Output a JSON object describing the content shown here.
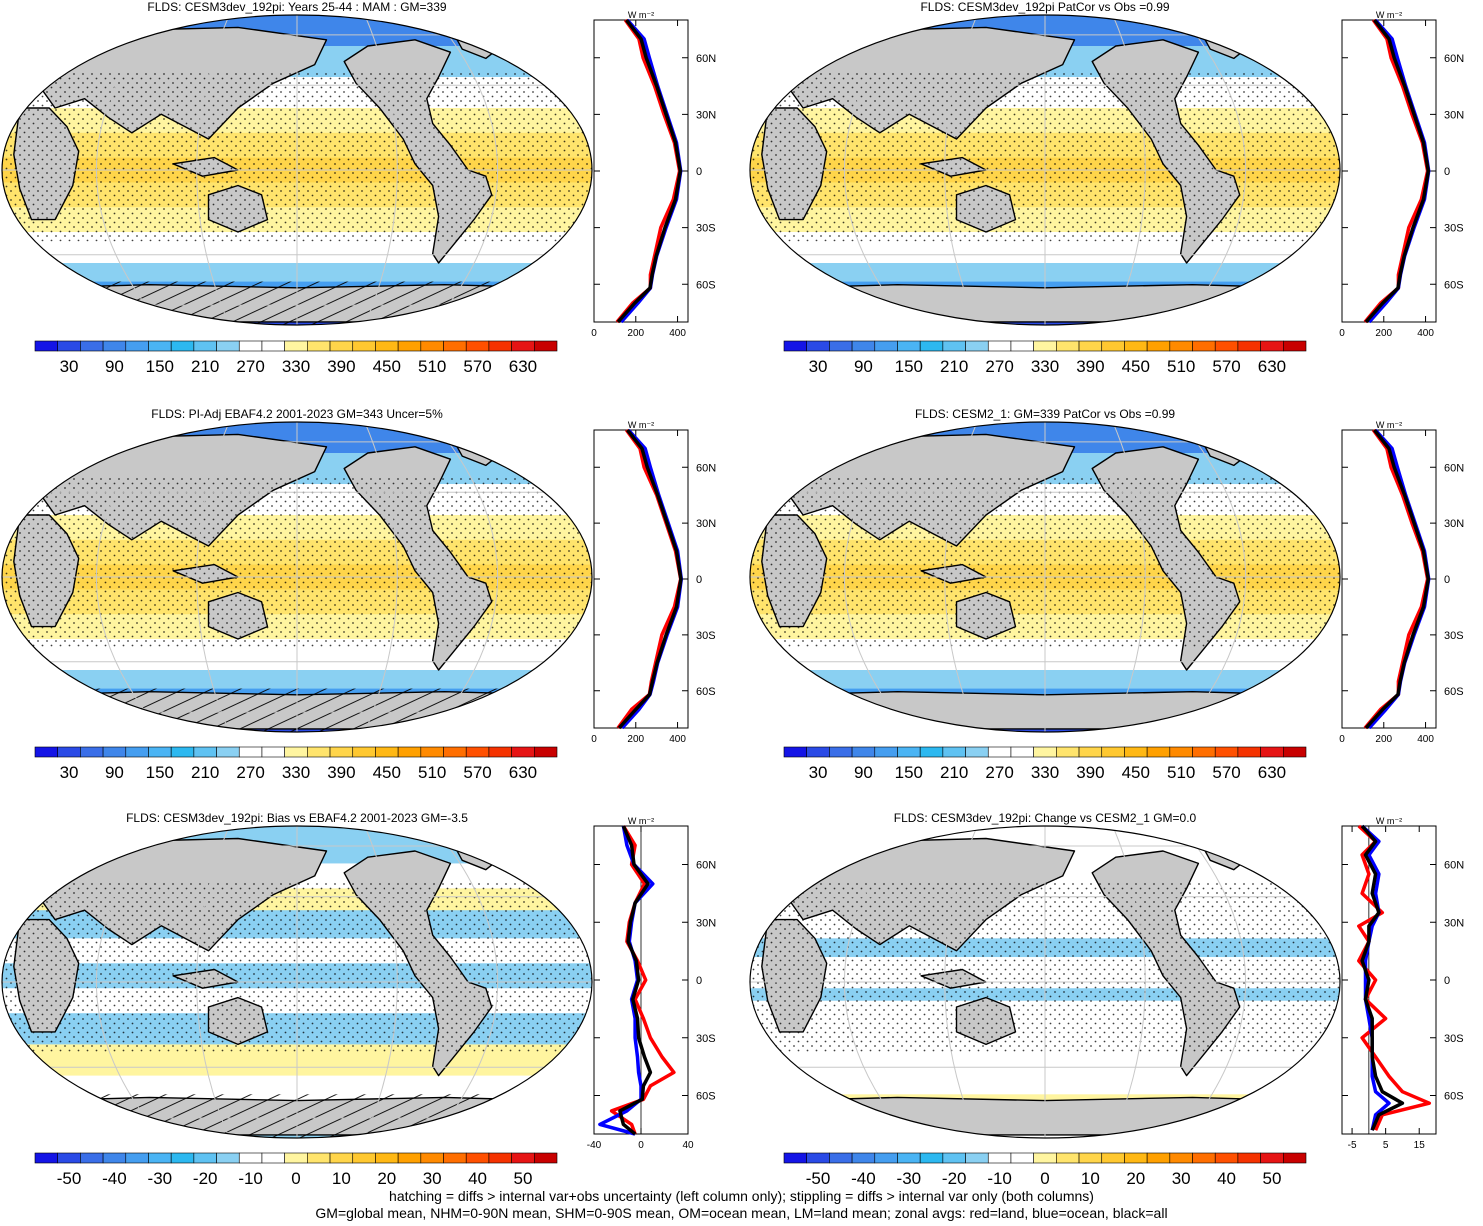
{
  "footer": {
    "line1": "hatching = diffs > internal var+obs uncertainty (left column only); stippling = diffs > internal var only (both columns)",
    "line2": "GM=global mean, NHM=0-90N mean, SHM=0-90S mean, OM=ocean mean, LM=land mean; zonal avgs: red=land, blue=ocean, black=all"
  },
  "units_label": "W m⁻²",
  "lat_ticks": [
    "60N",
    "30N",
    "0",
    "30S",
    "60S"
  ],
  "colors": {
    "land": "#c8c8c8",
    "zonal_land": "#ff0000",
    "zonal_ocean": "#0000ff",
    "zonal_all": "#000000"
  },
  "colorbars": {
    "absolute": {
      "labels": [
        "30",
        "90",
        "150",
        "210",
        "270",
        "330",
        "390",
        "450",
        "510",
        "570",
        "630"
      ],
      "colors": [
        "#1414e6",
        "#2a4ae6",
        "#3a6ee8",
        "#3f86ea",
        "#459ef0",
        "#4ab4f4",
        "#2cb8f0",
        "#5fc2f2",
        "#8ad0f2",
        "#ffffff",
        "#ffffff",
        "#fff5a0",
        "#ffe46c",
        "#ffd54a",
        "#ffc830",
        "#ffb814",
        "#ffa000",
        "#ff8a00",
        "#ff6e00",
        "#ff5000",
        "#f53200",
        "#e61414",
        "#c80000"
      ]
    },
    "difference": {
      "labels": [
        "-50",
        "-40",
        "-30",
        "-20",
        "-10",
        "0",
        "10",
        "20",
        "30",
        "40",
        "50"
      ],
      "colors": [
        "#1414e6",
        "#2a4ae6",
        "#3a6ee8",
        "#3f86ea",
        "#459ef0",
        "#4ab4f4",
        "#2cb8f0",
        "#5fc2f2",
        "#8ad0f2",
        "#ffffff",
        "#ffffff",
        "#fff5a0",
        "#ffe46c",
        "#ffd54a",
        "#ffc830",
        "#ffb814",
        "#ffa000",
        "#ff8a00",
        "#ff6e00",
        "#ff5000",
        "#f53200",
        "#e61414",
        "#c80000"
      ]
    }
  },
  "chart_data": [
    {
      "type": "heatmap",
      "title": "FLDS: CESM3dev_192pi: Years 25-44 : MAM : GM=339",
      "field": "absolute",
      "stipple": true,
      "hatch": true,
      "zonal_xlim": [
        0,
        450
      ],
      "zonal_xticks": [
        "0",
        "200",
        "400"
      ],
      "zonal_lat": [
        80,
        70,
        60,
        45,
        30,
        15,
        0,
        -15,
        -30,
        -45,
        -55,
        -62,
        -70,
        -80
      ],
      "zonal_land": [
        150,
        215,
        235,
        290,
        335,
        385,
        410,
        380,
        320,
        290,
        270,
        270,
        185,
        110
      ],
      "zonal_ocean": [
        160,
        240,
        265,
        305,
        350,
        395,
        415,
        395,
        345,
        300,
        280,
        270,
        210,
        130
      ],
      "zonal_all": [
        155,
        225,
        250,
        300,
        345,
        390,
        413,
        390,
        340,
        298,
        278,
        268,
        195,
        115
      ]
    },
    {
      "type": "heatmap",
      "title": "FLDS: CESM3dev_192pi PatCor vs Obs =0.99",
      "field": "absolute",
      "stipple": true,
      "hatch": false,
      "zonal_xlim": [
        0,
        450
      ],
      "zonal_xticks": [
        "0",
        "200",
        "400"
      ],
      "zonal_lat": [
        80,
        70,
        60,
        45,
        30,
        15,
        0,
        -15,
        -30,
        -45,
        -55,
        -62,
        -70,
        -80
      ],
      "zonal_land": [
        150,
        215,
        235,
        290,
        335,
        385,
        410,
        380,
        320,
        290,
        270,
        270,
        185,
        110
      ],
      "zonal_ocean": [
        160,
        240,
        265,
        305,
        350,
        395,
        415,
        395,
        345,
        300,
        280,
        270,
        210,
        130
      ],
      "zonal_all": [
        155,
        225,
        250,
        300,
        345,
        390,
        413,
        390,
        340,
        298,
        278,
        268,
        195,
        115
      ]
    },
    {
      "type": "heatmap",
      "title": "FLDS: PI-Adj EBAF4.2 2001-2023 GM=343 Uncer=5%",
      "field": "absolute",
      "stipple": true,
      "hatch": true,
      "zonal_xlim": [
        0,
        450
      ],
      "zonal_xticks": [
        "0",
        "200",
        "400"
      ],
      "zonal_lat": [
        80,
        70,
        60,
        45,
        30,
        15,
        0,
        -15,
        -30,
        -45,
        -55,
        -62,
        -70,
        -80
      ],
      "zonal_land": [
        155,
        220,
        240,
        300,
        345,
        390,
        415,
        385,
        325,
        295,
        275,
        265,
        180,
        115
      ],
      "zonal_ocean": [
        165,
        245,
        270,
        310,
        355,
        400,
        418,
        400,
        350,
        305,
        285,
        268,
        215,
        135
      ],
      "zonal_all": [
        160,
        230,
        255,
        305,
        350,
        395,
        416,
        395,
        345,
        302,
        280,
        266,
        200,
        120
      ]
    },
    {
      "type": "heatmap",
      "title": "FLDS: CESM2_1: GM=339 PatCor vs Obs =0.99",
      "field": "absolute",
      "stipple": true,
      "hatch": false,
      "zonal_xlim": [
        0,
        450
      ],
      "zonal_xticks": [
        "0",
        "200",
        "400"
      ],
      "zonal_lat": [
        80,
        70,
        60,
        45,
        30,
        15,
        0,
        -15,
        -30,
        -45,
        -55,
        -62,
        -70,
        -80
      ],
      "zonal_land": [
        150,
        215,
        235,
        290,
        335,
        385,
        410,
        380,
        320,
        290,
        270,
        270,
        185,
        110
      ],
      "zonal_ocean": [
        160,
        240,
        265,
        305,
        350,
        395,
        415,
        395,
        345,
        300,
        280,
        270,
        210,
        130
      ],
      "zonal_all": [
        155,
        225,
        250,
        300,
        345,
        390,
        413,
        390,
        340,
        298,
        278,
        268,
        195,
        115
      ]
    },
    {
      "type": "heatmap",
      "title": "FLDS: CESM3dev_192pi: Bias vs EBAF4.2 2001-2023 GM=-3.5",
      "field": "difference",
      "stipple": true,
      "hatch": true,
      "zonal_xlim": [
        -40,
        40
      ],
      "zonal_xticks": [
        "-40",
        "0",
        "40"
      ],
      "zonal_lat": [
        80,
        70,
        60,
        50,
        40,
        30,
        20,
        10,
        0,
        -10,
        -20,
        -30,
        -40,
        -48,
        -55,
        -62,
        -68,
        -75,
        -80
      ],
      "zonal_land": [
        -15,
        -5,
        -8,
        3,
        -5,
        -10,
        -12,
        -3,
        4,
        -5,
        2,
        8,
        18,
        28,
        8,
        2,
        -25,
        -8,
        -5
      ],
      "zonal_ocean": [
        -15,
        -12,
        -6,
        10,
        -5,
        -8,
        -10,
        -5,
        -3,
        -8,
        -5,
        -5,
        -3,
        -2,
        0,
        0,
        -12,
        -35,
        -5
      ],
      "zonal_all": [
        -15,
        -8,
        -6,
        6,
        -5,
        -9,
        -11,
        -4,
        -2,
        -7,
        -3,
        -2,
        3,
        8,
        2,
        1,
        -18,
        -15,
        -5
      ]
    },
    {
      "type": "heatmap",
      "title": "FLDS: CESM3dev_192pi: Change vs CESM2_1 GM=0.0",
      "field": "difference",
      "stipple": true,
      "hatch": false,
      "zonal_xlim": [
        -8,
        20
      ],
      "zonal_xticks": [
        "-5",
        "5",
        "15"
      ],
      "zonal_lat": [
        80,
        72,
        65,
        55,
        45,
        35,
        28,
        20,
        10,
        0,
        -10,
        -20,
        -30,
        -40,
        -50,
        -58,
        -64,
        -70,
        -78
      ],
      "zonal_land": [
        -3,
        2,
        -2,
        0,
        -2,
        4,
        -3,
        0,
        -3,
        2,
        -1,
        5,
        -2,
        2,
        6,
        10,
        18,
        4,
        2
      ],
      "zonal_ocean": [
        -2,
        3,
        0,
        3,
        2,
        3,
        1,
        0,
        -1,
        -1,
        -1,
        0,
        1,
        1,
        1,
        2,
        6,
        2,
        1
      ],
      "zonal_all": [
        -2,
        2,
        -1,
        2,
        1,
        3,
        0,
        0,
        -2,
        0,
        -1,
        1,
        1,
        1,
        2,
        4,
        10,
        3,
        1
      ]
    }
  ]
}
